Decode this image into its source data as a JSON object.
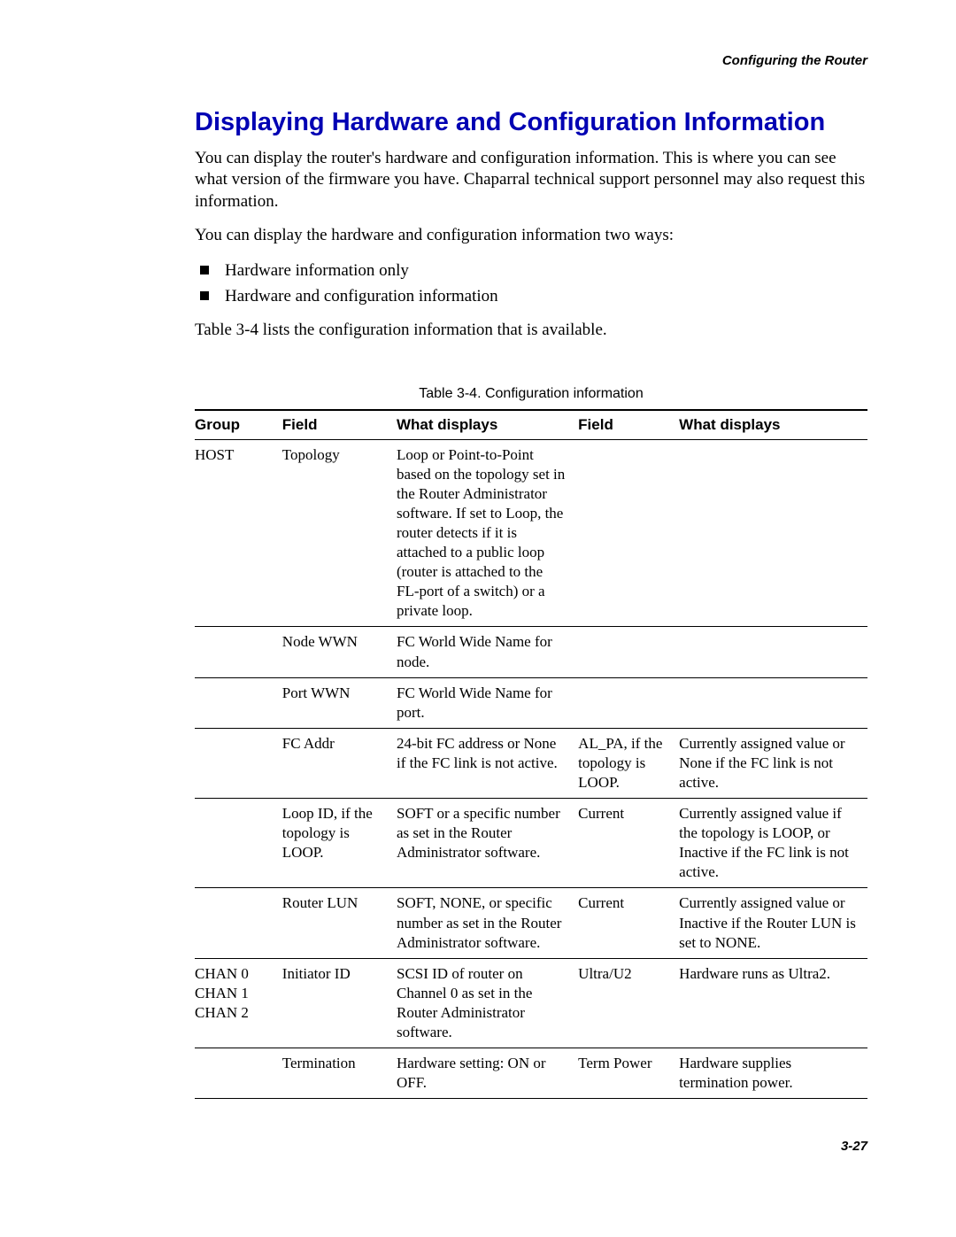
{
  "running_head": "Configuring the Router",
  "title": "Displaying Hardware and Configuration Information",
  "para1": "You can display the router's hardware and configuration information. This is where you can see what version of the firmware you have. Chaparral technical support personnel may also request this information.",
  "para2": "You can display the hardware and configuration information two ways:",
  "bullets": [
    "Hardware information only",
    "Hardware and configuration information"
  ],
  "para3": "Table 3-4 lists the configuration information that is available.",
  "table_caption": "Table 3-4. Configuration information",
  "columns": [
    "Group",
    "Field",
    "What displays",
    "Field",
    "What displays"
  ],
  "rows": [
    {
      "group": "HOST",
      "field1": "Topology",
      "disp1": "Loop or Point-to-Point based on the topology set in the Router Administrator software. If set to Loop, the router detects if it is attached to a public loop (router is attached to the FL-port of a switch) or a private loop.",
      "field2": "",
      "disp2": ""
    },
    {
      "group": "",
      "field1": "Node WWN",
      "disp1": "FC World Wide Name for node.",
      "field2": "",
      "disp2": ""
    },
    {
      "group": "",
      "field1": "Port WWN",
      "disp1": "FC World Wide Name for port.",
      "field2": "",
      "disp2": ""
    },
    {
      "group": "",
      "field1": "FC Addr",
      "disp1": "24-bit FC address or None if the FC link is not active.",
      "field2": "AL_PA, if the topology is LOOP.",
      "disp2": "Currently assigned value or None if the FC link is not active."
    },
    {
      "group": "",
      "field1": "Loop ID, if the topology is LOOP.",
      "disp1": "SOFT or a specific number as set in the Router Administrator software.",
      "field2": "Current",
      "disp2": "Currently assigned value if the topology is LOOP, or Inactive if the FC link is not active."
    },
    {
      "group": "",
      "field1": "Router LUN",
      "disp1": "SOFT, NONE, or specific number as set in the Router Administrator software.",
      "field2": "Current",
      "disp2": "Currently assigned value or Inactive if the Router LUN is set to NONE."
    },
    {
      "group": "CHAN 0\nCHAN 1\nCHAN 2",
      "field1": "Initiator ID",
      "disp1": "SCSI ID of router on Channel 0 as set in the Router Administrator software.",
      "field2": "Ultra/U2",
      "disp2": "Hardware runs as Ultra2."
    },
    {
      "group": "",
      "field1": "Termination",
      "disp1": "Hardware setting: ON or OFF.",
      "field2": "Term Power",
      "disp2": "Hardware supplies termination power."
    }
  ],
  "page_number": "3-27",
  "colors": {
    "title": "#0000b3",
    "text": "#000000",
    "background": "#ffffff"
  }
}
